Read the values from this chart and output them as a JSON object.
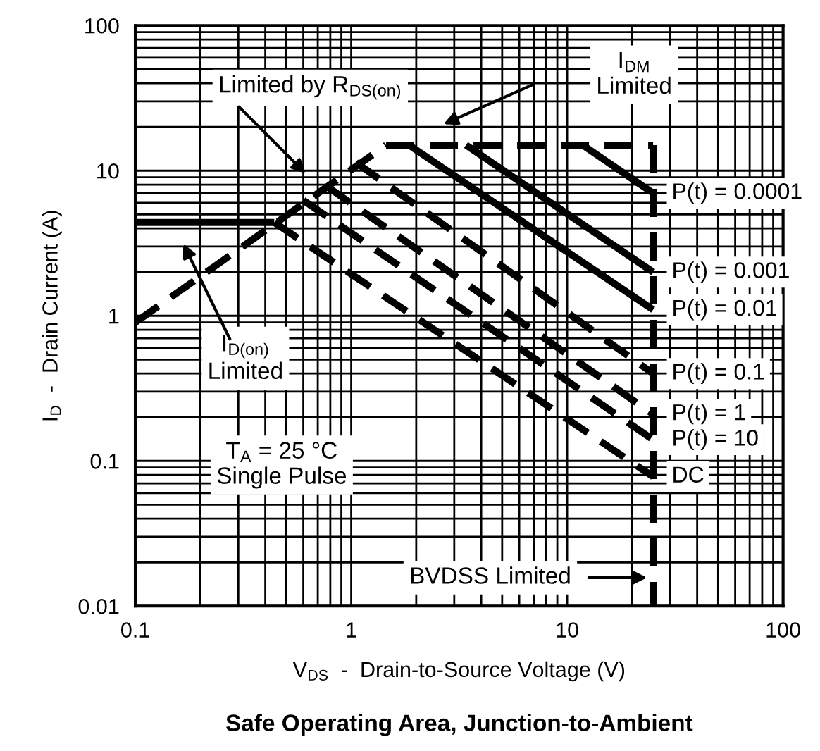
{
  "chart_data": {
    "type": "line",
    "title": "Safe Operating Area, Junction-to-Ambient",
    "xlabel": "V$_{DS}$  -  Drain-to-Source Voltage (V)",
    "ylabel": "I$_{D}$  -  Drain Current (A)",
    "log": "xy",
    "xlim": [
      0.1,
      100
    ],
    "ylim": [
      0.01,
      100
    ],
    "xticks": [
      0.1,
      1,
      10,
      100
    ],
    "yticks": [
      0.01,
      0.1,
      1,
      10,
      100
    ],
    "grid": true,
    "legend": false,
    "marker": "none",
    "series": [
      {
        "color": "#000000",
        "line_style": "dashed",
        "x": [
          0.1,
          1.45
        ],
        "values": [
          0.9,
          15
        ]
      },
      {
        "color": "#000000",
        "line_style": "dashed",
        "x": [
          1.45,
          25
        ],
        "values": [
          15,
          15
        ]
      },
      {
        "color": "#000000",
        "line_style": "dashed",
        "x": [
          25,
          25
        ],
        "values": [
          15,
          0.01
        ]
      },
      {
        "color": "#000000",
        "line_style": "solid",
        "x": [
          0.1,
          0.44
        ],
        "values": [
          4.4,
          4.4
        ]
      },
      {
        "name": "P(t) = 0.0001",
        "color": "#000000",
        "line_style": "solid",
        "x": [
          11.8,
          25
        ],
        "values": [
          15,
          7.0
        ]
      },
      {
        "name": "P(t) = 0.001",
        "color": "#000000",
        "line_style": "solid",
        "x": [
          3.4,
          25
        ],
        "values": [
          15,
          2.0
        ]
      },
      {
        "name": "P(t) = 0.01",
        "color": "#000000",
        "line_style": "solid",
        "x": [
          1.85,
          25
        ],
        "values": [
          15,
          1.1
        ]
      },
      {
        "name": "P(t) = 0.1",
        "color": "#000000",
        "line_style": "dashed",
        "x": [
          1.05,
          25
        ],
        "values": [
          11.4,
          0.4
        ]
      },
      {
        "name": "P(t) = 1",
        "color": "#000000",
        "line_style": "dashed",
        "x": [
          0.77,
          25
        ],
        "values": [
          7.8,
          0.21
        ]
      },
      {
        "name": "P(t) = 10",
        "color": "#000000",
        "line_style": "dashed",
        "x": [
          0.6,
          25
        ],
        "values": [
          6.25,
          0.14
        ]
      },
      {
        "name": "DC",
        "color": "#000000",
        "line_style": "dashed",
        "x": [
          0.44,
          25
        ],
        "values": [
          4.4,
          0.078
        ]
      }
    ],
    "annotations": [
      "Limited by R$_{DS(on)}$",
      "I$_{DM}$\nLimited",
      "I$_{D(on)}$\nLimited",
      "T$_{A}$ = 25 °C\nSingle Pulse",
      "BVDSS Limited"
    ]
  }
}
